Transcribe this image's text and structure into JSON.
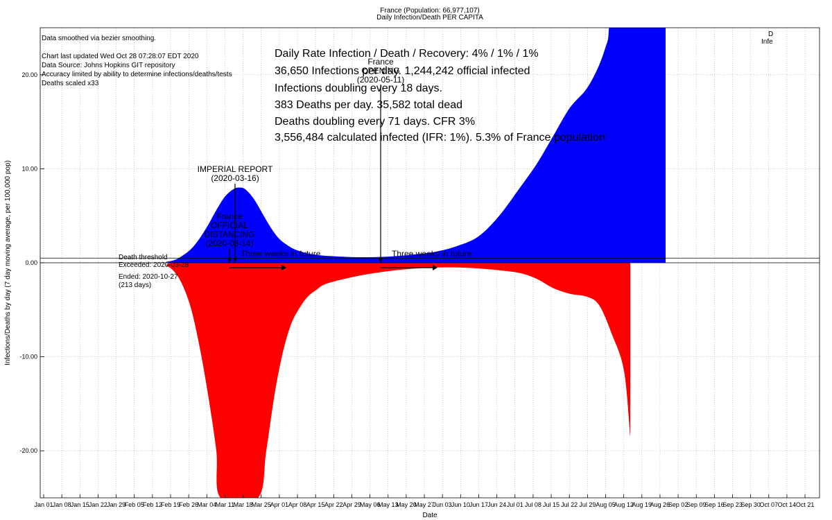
{
  "chart_data": {
    "type": "area",
    "title": "France (Population: 66,977,107)",
    "subtitle": "Daily Infection/Death PER CAPITA",
    "xlabel": "Date",
    "ylabel": "Infections/Deaths by day (7 day moving average, per 100,000 pop)",
    "ylim": [
      -25,
      25
    ],
    "yticks": [
      {
        "v": 20,
        "label": "20.00"
      },
      {
        "v": 10,
        "label": "10.00"
      },
      {
        "v": 0,
        "label": "0.00"
      },
      {
        "v": -10,
        "label": "-10.00"
      },
      {
        "v": -20,
        "label": "-20.00"
      }
    ],
    "xticks": [
      "Jan 01",
      "Jan 08",
      "Jan 15",
      "Jan 22",
      "Jan 29",
      "Feb 05",
      "Feb 12",
      "Feb 19",
      "Feb 26",
      "Mar 04",
      "Mar 11",
      "Mar 18",
      "Mar 25",
      "Apr 01",
      "Apr 08",
      "Apr 15",
      "Apr 22",
      "Apr 29",
      "May 06",
      "May 13",
      "May 20",
      "May 27",
      "Jun 03",
      "Jun 10",
      "Jun 17",
      "Jun 24",
      "Jul 01",
      "Jul 08",
      "Jul 15",
      "Jul 22",
      "Jul 29",
      "Aug 05",
      "Aug 12",
      "Aug 19",
      "Aug 26",
      "Sep 02",
      "Sep 09",
      "Sep 16",
      "Sep 23",
      "Sep 30",
      "Oct 07",
      "Oct 14",
      "Oct 21"
    ],
    "grid": true,
    "death_threshold_y": 0.5,
    "colors": {
      "infections": "#0000ff",
      "deaths": "#ff0000"
    },
    "series": [
      {
        "role": "infections",
        "points": [
          [
            0,
            0
          ],
          [
            56,
            0
          ],
          [
            60,
            0.1
          ],
          [
            64,
            0.3
          ],
          [
            68,
            0.8
          ],
          [
            72,
            1.5
          ],
          [
            76,
            2.6
          ],
          [
            80,
            4.0
          ],
          [
            84,
            5.6
          ],
          [
            88,
            7.0
          ],
          [
            92,
            7.8
          ],
          [
            95,
            8.0
          ],
          [
            98,
            7.8
          ],
          [
            102,
            6.8
          ],
          [
            106,
            5.3
          ],
          [
            110,
            3.8
          ],
          [
            114,
            2.6
          ],
          [
            118,
            1.9
          ],
          [
            122,
            1.4
          ],
          [
            128,
            1.0
          ],
          [
            134,
            0.8
          ],
          [
            140,
            0.7
          ],
          [
            150,
            0.6
          ],
          [
            160,
            0.6
          ],
          [
            170,
            0.7
          ],
          [
            180,
            0.9
          ],
          [
            190,
            1.2
          ],
          [
            200,
            1.8
          ],
          [
            210,
            2.8
          ],
          [
            220,
            5.0
          ],
          [
            230,
            8.0
          ],
          [
            238,
            10.5
          ],
          [
            246,
            13.5
          ],
          [
            254,
            16.5
          ],
          [
            262,
            18.5
          ],
          [
            268,
            21.0
          ],
          [
            272,
            23.5
          ],
          [
            276,
            26
          ],
          [
            300,
            26
          ]
        ]
      },
      {
        "role": "deaths",
        "points": [
          [
            0,
            0
          ],
          [
            56,
            0
          ],
          [
            60,
            -0.3
          ],
          [
            64,
            -1.0
          ],
          [
            68,
            -2.5
          ],
          [
            72,
            -5.0
          ],
          [
            76,
            -9.0
          ],
          [
            80,
            -14.0
          ],
          [
            84,
            -20.0
          ],
          [
            86,
            -25
          ],
          [
            104,
            -25
          ],
          [
            108,
            -20.0
          ],
          [
            112,
            -14.0
          ],
          [
            116,
            -9.5
          ],
          [
            120,
            -6.5
          ],
          [
            124,
            -4.8
          ],
          [
            128,
            -3.6
          ],
          [
            132,
            -2.9
          ],
          [
            136,
            -2.3
          ],
          [
            144,
            -1.8
          ],
          [
            152,
            -1.4
          ],
          [
            160,
            -1.1
          ],
          [
            170,
            -0.8
          ],
          [
            180,
            -0.6
          ],
          [
            190,
            -0.5
          ],
          [
            200,
            -0.5
          ],
          [
            210,
            -0.6
          ],
          [
            220,
            -0.8
          ],
          [
            230,
            -1.1
          ],
          [
            238,
            -1.7
          ],
          [
            246,
            -2.7
          ],
          [
            254,
            -3.3
          ],
          [
            262,
            -3.6
          ],
          [
            268,
            -4.5
          ],
          [
            274,
            -7.5
          ],
          [
            280,
            -11.5
          ],
          [
            283,
            -18.5
          ]
        ]
      }
    ]
  },
  "notes": {
    "smoothing": "Data smoothed via bezier smoothing.",
    "updated": "Chart last updated Wed Oct 28 07:28:07 EDT 2020",
    "source": "Data Source: Johns Hopkins GIT repository",
    "accuracy": "Accuracy limited by ability to determine infections/deaths/tests",
    "scaled": "Deaths scaled x33"
  },
  "stats": {
    "line1": "Daily Rate Infection / Death / Recovery: 4% / 1% / 1%",
    "line2": "36,650 Infections per day.  1,244,242 official infected",
    "line3": "Infections doubling every 18 days.",
    "line4": "383 Deaths per day.  35,582 total dead",
    "line5": "Deaths doubling every 71 days.  CFR 3%",
    "line6": "3,556,484 calculated infected (IFR: 1%).  5.3% of France population"
  },
  "threshold": {
    "label": "Death threshold",
    "exceeded": "Exceeded: 2020-03-28",
    "ended": "Ended: 2020-10-27",
    "days": "(213 days)"
  },
  "events": {
    "imperial_line1": "IMPERIAL REPORT",
    "imperial_line2": "(2020-03-16)",
    "distancing_line1": "France",
    "distancing_line2": "OFFICIAL",
    "distancing_line3": "DISTANCING",
    "distancing_line4": "(2020-03-14)",
    "opening_line1": "France",
    "opening_line2": "OPENING",
    "opening_line3": "(2020-05-11)",
    "future1": "Three weeks in future",
    "future2": "Three weeks in future"
  },
  "clipped_label": {
    "line1": "D",
    "line2": "Infe"
  }
}
